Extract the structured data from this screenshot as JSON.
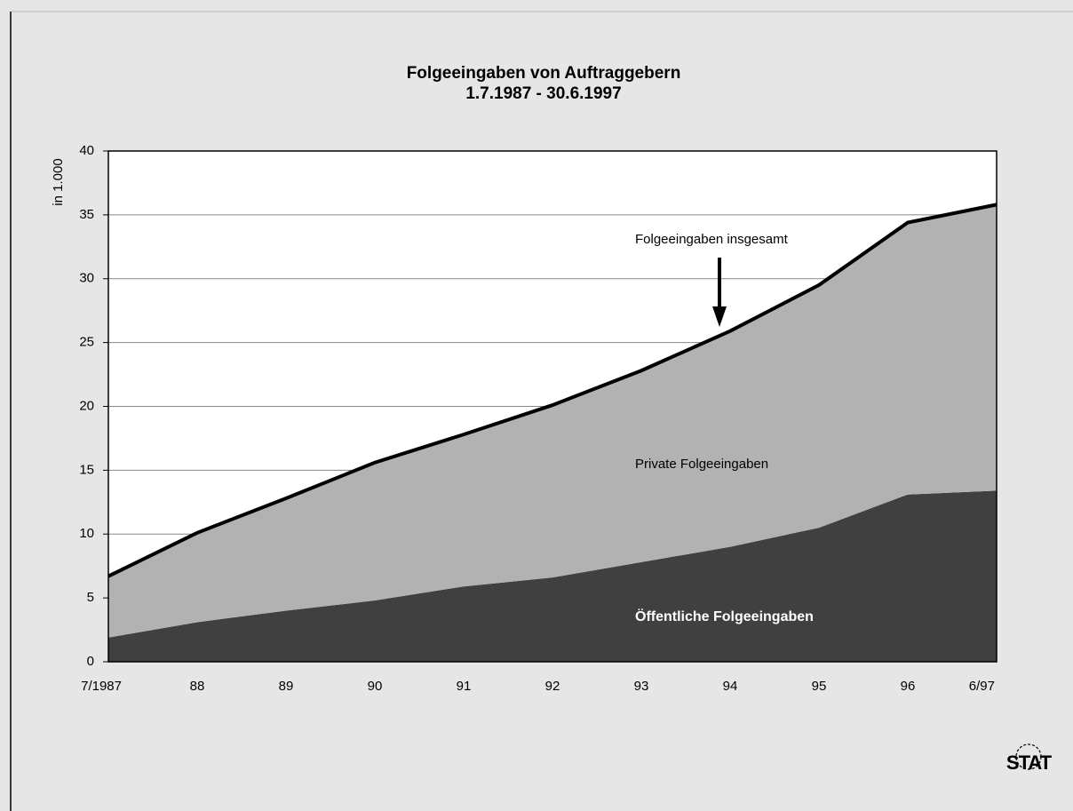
{
  "chart_data": {
    "type": "stacked_area",
    "title": "Folgeeingaben von Auftraggebern",
    "subtitle": "1.7.1987 - 30.6.1997",
    "y_label": "in 1.000",
    "categories": [
      "7/1987",
      "88",
      "89",
      "90",
      "91",
      "92",
      "93",
      "94",
      "95",
      "96",
      "6/97"
    ],
    "series": [
      {
        "name": "Öffentliche Folgeeingaben",
        "color": "#404040",
        "values": [
          1.9,
          3.1,
          4.0,
          4.8,
          5.9,
          6.6,
          7.8,
          9.0,
          10.5,
          13.1,
          13.4
        ]
      },
      {
        "name": "Private Folgeeingaben",
        "color": "#b2b2b2",
        "values": [
          4.8,
          7.0,
          8.8,
          10.8,
          11.9,
          13.5,
          15.0,
          16.9,
          19.0,
          21.3,
          22.4
        ]
      }
    ],
    "annotations": [
      "Folgeeingaben insgesamt"
    ],
    "logo": "STAT",
    "ylim": [
      0,
      40
    ],
    "yticks": [
      0,
      5,
      10,
      15,
      20,
      25,
      30,
      35,
      40
    ],
    "grid": true
  }
}
